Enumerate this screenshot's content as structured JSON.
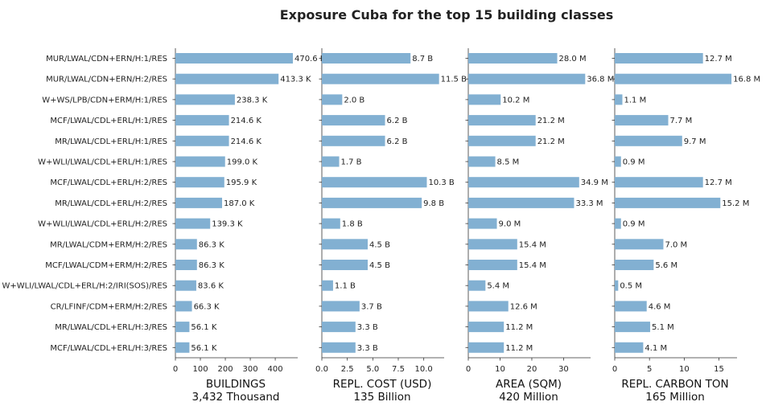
{
  "title": "Exposure Cuba for the top 15 building classes",
  "chart_data": {
    "type": "bar",
    "orientation": "horizontal",
    "title": "Exposure Cuba for the top 15 building classes",
    "bar_color": "#82b0d2",
    "categories": [
      "MUR/LWAL/CDN+ERN/H:1/RES",
      "MUR/LWAL/CDN+ERN/H:2/RES",
      "W+WS/LPB/CDN+ERM/H:1/RES",
      "MCF/LWAL/CDL+ERL/H:1/RES",
      "MR/LWAL/CDL+ERL/H:1/RES",
      "W+WLI/LWAL/CDL+ERL/H:1/RES",
      "MCF/LWAL/CDL+ERL/H:2/RES",
      "MR/LWAL/CDL+ERL/H:2/RES",
      "W+WLI/LWAL/CDL+ERL/H:2/RES",
      "MR/LWAL/CDM+ERM/H:2/RES",
      "MCF/LWAL/CDM+ERM/H:2/RES",
      "W+WLI/LWAL/CDL+ERL/H:2/IRI(SOS)/RES",
      "CR/LFINF/CDM+ERM/H:2/RES",
      "MR/LWAL/CDL+ERL/H:3/RES",
      "MCF/LWAL/CDL+ERL/H:3/RES"
    ],
    "panels": [
      {
        "xlabel": "BUILDINGS",
        "total": "3,432 Thousand",
        "xlim": [
          0,
          490
        ],
        "ticks": [
          0,
          100,
          200,
          300,
          400
        ],
        "tick_labels": [
          "0",
          "100",
          "200",
          "300",
          "400"
        ],
        "values": [
          470.6,
          413.3,
          238.3,
          214.6,
          214.6,
          199.0,
          195.9,
          187.0,
          139.3,
          86.3,
          86.3,
          83.6,
          66.3,
          56.1,
          56.1
        ],
        "labels": [
          "470.6 K",
          "413.3 K",
          "238.3 K",
          "214.6 K",
          "214.6 K",
          "199.0 K",
          "195.9 K",
          "187.0 K",
          "139.3 K",
          "86.3 K",
          "86.3 K",
          "83.6 K",
          "66.3 K",
          "56.1 K",
          "56.1 K"
        ]
      },
      {
        "xlabel": "REPL. COST (USD)",
        "total": "135 Billion",
        "xlim": [
          0,
          12
        ],
        "ticks": [
          0,
          2.5,
          5,
          7.5,
          10
        ],
        "tick_labels": [
          "0.0",
          "2.5",
          "5.0",
          "7.5",
          "10.0"
        ],
        "values": [
          8.7,
          11.5,
          2.0,
          6.2,
          6.2,
          1.7,
          10.3,
          9.8,
          1.8,
          4.5,
          4.5,
          1.1,
          3.7,
          3.3,
          3.3
        ],
        "labels": [
          "8.7 B",
          "11.5 B",
          "2.0 B",
          "6.2 B",
          "6.2 B",
          "1.7 B",
          "10.3 B",
          "9.8 B",
          "1.8 B",
          "4.5 B",
          "4.5 B",
          "1.1 B",
          "3.7 B",
          "3.3 B",
          "3.3 B"
        ]
      },
      {
        "xlabel": "AREA (SQM)",
        "total": "420 Million",
        "xlim": [
          0,
          38.5
        ],
        "ticks": [
          0,
          10,
          20,
          30
        ],
        "tick_labels": [
          "0",
          "10",
          "20",
          "30"
        ],
        "values": [
          28.0,
          36.8,
          10.2,
          21.2,
          21.2,
          8.5,
          34.9,
          33.3,
          9.0,
          15.4,
          15.4,
          5.4,
          12.6,
          11.2,
          11.2
        ],
        "labels": [
          "28.0 M",
          "36.8 M",
          "10.2 M",
          "21.2 M",
          "21.2 M",
          "8.5 M",
          "34.9 M",
          "33.3 M",
          "9.0 M",
          "15.4 M",
          "15.4 M",
          "5.4 M",
          "12.6 M",
          "11.2 M",
          "11.2 M"
        ]
      },
      {
        "xlabel": "REPL. CARBON TON",
        "total": "165 Million",
        "xlim": [
          0,
          17.6
        ],
        "ticks": [
          0,
          5,
          10,
          15
        ],
        "tick_labels": [
          "0",
          "5",
          "10",
          "15"
        ],
        "values": [
          12.7,
          16.8,
          1.1,
          7.7,
          9.7,
          0.9,
          12.7,
          15.2,
          0.9,
          7.0,
          5.6,
          0.5,
          4.6,
          5.1,
          4.1
        ],
        "labels": [
          "12.7 M",
          "16.8 M",
          "1.1 M",
          "7.7 M",
          "9.7 M",
          "0.9 M",
          "12.7 M",
          "15.2 M",
          "0.9 M",
          "7.0 M",
          "5.6 M",
          "0.5 M",
          "4.6 M",
          "5.1 M",
          "4.1 M"
        ]
      }
    ]
  }
}
